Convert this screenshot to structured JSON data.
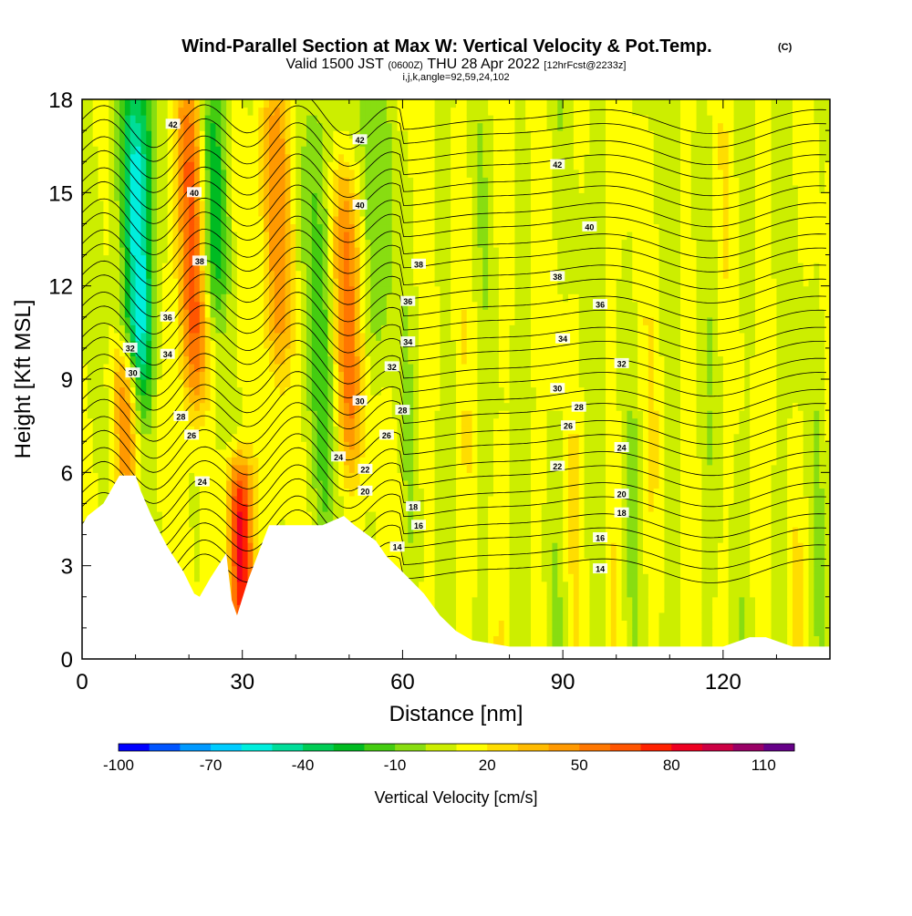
{
  "chart_data": {
    "type": "heatmap",
    "title": "Wind-Parallel Section at Max W: Vertical Velocity & Pot.Temp.",
    "title_mark": "(C)",
    "subtitle_parts": [
      "Valid 1500 JST",
      "(0600Z)",
      "THU 28 Apr 2022",
      "[12hrFcst@2233z]"
    ],
    "subtitle3": "i,j,k,angle=92,59,24,102",
    "xlabel": "Distance [nm]",
    "ylabel": "Height [Kft MSL]",
    "xlim": [
      0,
      140
    ],
    "ylim": [
      0,
      18
    ],
    "xticks": [
      0,
      30,
      60,
      90,
      120
    ],
    "yticks": [
      0,
      3,
      6,
      9,
      12,
      15,
      18
    ],
    "colorbar": {
      "label": "Vertical Velocity [cm/s]",
      "min": -100,
      "max": 120,
      "ticks": [
        -100,
        -70,
        -40,
        -10,
        20,
        50,
        80,
        110
      ],
      "colors": [
        "#0000ff",
        "#0055ff",
        "#0099ff",
        "#00ccff",
        "#00eedd",
        "#00dd99",
        "#00cc55",
        "#00bb22",
        "#44cc11",
        "#88dd11",
        "#ccee00",
        "#ffff00",
        "#ffdd00",
        "#ffbb00",
        "#ff9900",
        "#ff7700",
        "#ff5500",
        "#ff2200",
        "#ee0022",
        "#cc0044",
        "#990066",
        "#660088"
      ]
    },
    "background_level": 10,
    "updrafts": [
      {
        "x": 21,
        "y_range": [
          9,
          18
        ],
        "value": 60
      },
      {
        "x": 29,
        "y_range": [
          1.5,
          5.5
        ],
        "value": 80
      },
      {
        "x": 37,
        "y_range": [
          10,
          18
        ],
        "value": 40
      },
      {
        "x": 50,
        "y_range": [
          7,
          15
        ],
        "value": 45
      },
      {
        "x": 8,
        "y_range": [
          6,
          9
        ],
        "value": 40
      }
    ],
    "downdrafts": [
      {
        "x": 11,
        "y_range": [
          9,
          18
        ],
        "value": -70
      },
      {
        "x": 25,
        "y_range": [
          12,
          18
        ],
        "value": -40
      },
      {
        "x": 45,
        "y_range": [
          5,
          18
        ],
        "value": -25
      },
      {
        "x": 55,
        "y_range": [
          10,
          18
        ],
        "value": -20
      }
    ],
    "terrain": {
      "x": [
        0,
        1,
        4,
        7,
        10,
        11,
        13,
        16,
        19,
        21,
        22,
        24,
        27,
        28,
        29,
        31,
        33,
        35,
        37,
        39,
        41,
        45,
        49,
        51,
        55,
        57,
        60,
        64,
        67,
        70,
        73,
        80,
        100,
        120,
        125,
        128,
        133,
        140
      ],
      "height": [
        4.3,
        4.6,
        5.0,
        5.9,
        5.9,
        5.4,
        4.6,
        3.6,
        2.8,
        2.1,
        2.0,
        2.6,
        3.4,
        1.9,
        1.4,
        2.5,
        3.4,
        4.3,
        4.3,
        4.3,
        4.3,
        4.3,
        4.6,
        4.3,
        3.8,
        3.3,
        2.8,
        2.1,
        1.4,
        0.9,
        0.6,
        0.4,
        0.4,
        0.4,
        0.7,
        0.7,
        0.4,
        0.4
      ]
    },
    "isentropes": {
      "levels": [
        14,
        16,
        18,
        20,
        22,
        24,
        26,
        28,
        30,
        32,
        34,
        36,
        38,
        40,
        42
      ],
      "labels": [
        {
          "text": "42",
          "x": 17,
          "y": 17.2
        },
        {
          "text": "42",
          "x": 52,
          "y": 16.7
        },
        {
          "text": "42",
          "x": 89,
          "y": 15.9
        },
        {
          "text": "40",
          "x": 21,
          "y": 15.0
        },
        {
          "text": "40",
          "x": 52,
          "y": 14.6
        },
        {
          "text": "40",
          "x": 95,
          "y": 13.9
        },
        {
          "text": "38",
          "x": 22,
          "y": 12.8
        },
        {
          "text": "38",
          "x": 63,
          "y": 12.7
        },
        {
          "text": "38",
          "x": 89,
          "y": 12.3
        },
        {
          "text": "36",
          "x": 16,
          "y": 11.0
        },
        {
          "text": "36",
          "x": 61,
          "y": 11.5
        },
        {
          "text": "36",
          "x": 97,
          "y": 11.4
        },
        {
          "text": "34",
          "x": 16,
          "y": 9.8
        },
        {
          "text": "34",
          "x": 61,
          "y": 10.2
        },
        {
          "text": "34",
          "x": 90,
          "y": 10.3
        },
        {
          "text": "32",
          "x": 9,
          "y": 10.0
        },
        {
          "text": "32",
          "x": 58,
          "y": 9.4
        },
        {
          "text": "32",
          "x": 101,
          "y": 9.5
        },
        {
          "text": "30",
          "x": 9.5,
          "y": 9.2
        },
        {
          "text": "30",
          "x": 52,
          "y": 8.3
        },
        {
          "text": "30",
          "x": 89,
          "y": 8.7
        },
        {
          "text": "28",
          "x": 18.5,
          "y": 7.8
        },
        {
          "text": "28",
          "x": 60,
          "y": 8.0
        },
        {
          "text": "28",
          "x": 93,
          "y": 8.1
        },
        {
          "text": "26",
          "x": 20.5,
          "y": 7.2
        },
        {
          "text": "26",
          "x": 57,
          "y": 7.2
        },
        {
          "text": "26",
          "x": 91,
          "y": 7.5
        },
        {
          "text": "24",
          "x": 22.5,
          "y": 5.7
        },
        {
          "text": "24",
          "x": 48,
          "y": 6.5
        },
        {
          "text": "24",
          "x": 101,
          "y": 6.8
        },
        {
          "text": "22",
          "x": 53,
          "y": 6.1
        },
        {
          "text": "22",
          "x": 89,
          "y": 6.2
        },
        {
          "text": "20",
          "x": 53,
          "y": 5.4
        },
        {
          "text": "20",
          "x": 101,
          "y": 5.3
        },
        {
          "text": "18",
          "x": 62,
          "y": 4.9
        },
        {
          "text": "18",
          "x": 101,
          "y": 4.7
        },
        {
          "text": "16",
          "x": 63,
          "y": 4.3
        },
        {
          "text": "16",
          "x": 97,
          "y": 3.9
        },
        {
          "text": "14",
          "x": 59,
          "y": 3.6
        },
        {
          "text": "14",
          "x": 97,
          "y": 2.9
        }
      ]
    }
  }
}
